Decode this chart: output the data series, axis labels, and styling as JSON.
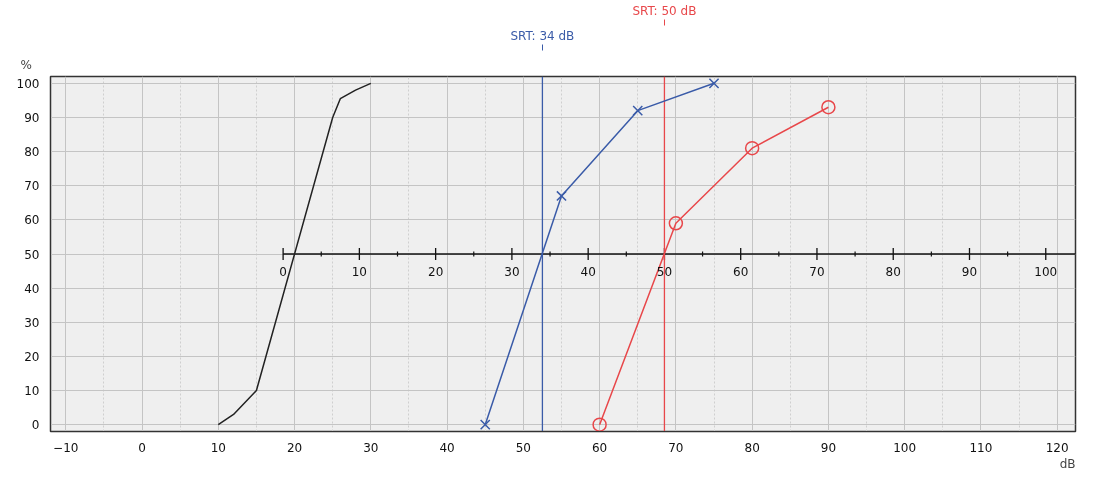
{
  "chart_data": {
    "type": "line",
    "xlabel": "dB",
    "ylabel": "%",
    "xlim": [
      -12,
      122.4
    ],
    "xticks": [
      -10,
      0,
      10,
      20,
      30,
      40,
      50,
      60,
      70,
      80,
      90,
      100,
      110,
      120
    ],
    "ylim": [
      -2,
      102
    ],
    "yticks": [
      0,
      10,
      20,
      30,
      40,
      50,
      60,
      70,
      80,
      90,
      100
    ],
    "x2lim": [
      -30.5,
      103.9
    ],
    "x2ticks": [
      0,
      10,
      20,
      30,
      40,
      50,
      60,
      70,
      80,
      90,
      100
    ],
    "grid": true,
    "line_style": "solid",
    "series": [
      {
        "color": "#222222",
        "marker": "none",
        "x": [
          10,
          12,
          15,
          25,
          26,
          28,
          30
        ],
        "values": [
          0,
          3,
          10,
          90,
          95.5,
          98,
          100
        ]
      },
      {
        "color": "#3a5ba8",
        "marker": "cross",
        "x": [
          45,
          55,
          65,
          75
        ],
        "values": [
          0,
          67,
          92,
          100
        ]
      },
      {
        "color": "#e8474a",
        "marker": "circle",
        "x": [
          60,
          70,
          80,
          90
        ],
        "values": [
          0,
          59,
          81,
          93
        ]
      }
    ],
    "ref_lines": [
      {
        "axis": "x2",
        "value": 34,
        "label": "SRT: 34 dB",
        "color": "#3a5ba8"
      },
      {
        "axis": "x2",
        "value": 50,
        "label": "SRT: 50 dB",
        "color": "#e8474a"
      }
    ]
  }
}
